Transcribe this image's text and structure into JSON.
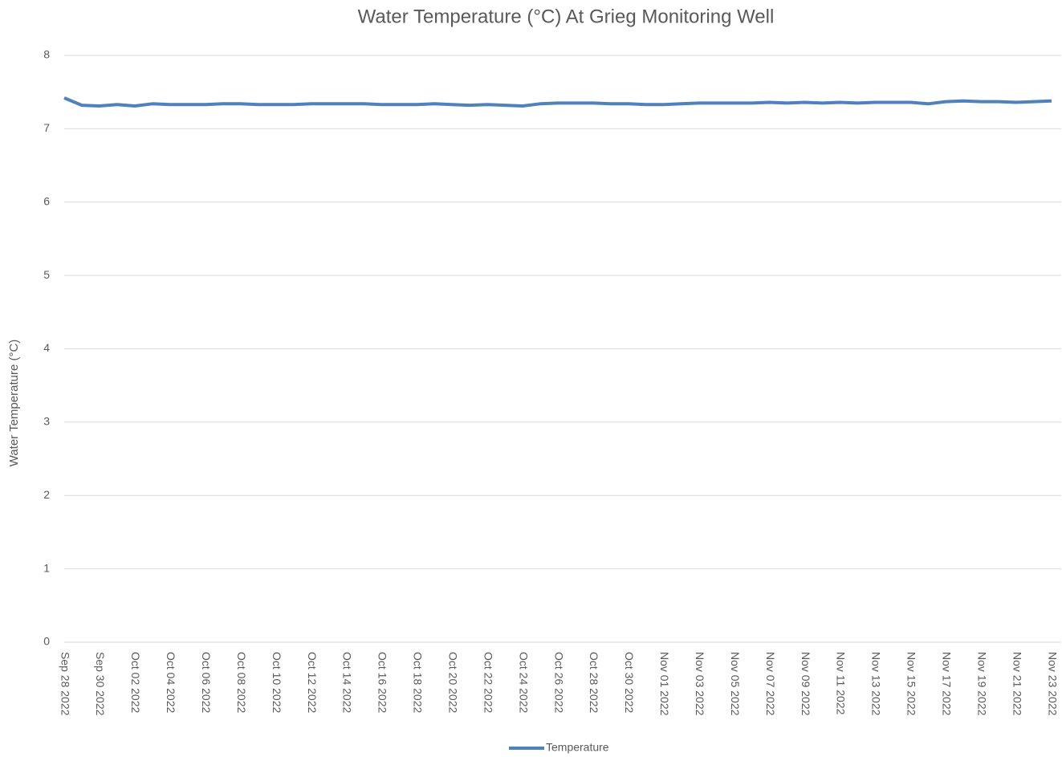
{
  "chart_data": {
    "type": "line",
    "title": "Water Temperature (°C) At Grieg Monitoring Well",
    "y_label": "Water Temperature (°C)",
    "x": [
      "Sep 28 2022",
      "Sep 29 2022",
      "Sep 30 2022",
      "Oct 01 2022",
      "Oct 02 2022",
      "Oct 03 2022",
      "Oct 04 2022",
      "Oct 05 2022",
      "Oct 06 2022",
      "Oct 07 2022",
      "Oct 08 2022",
      "Oct 09 2022",
      "Oct 10 2022",
      "Oct 11 2022",
      "Oct 12 2022",
      "Oct 13 2022",
      "Oct 14 2022",
      "Oct 15 2022",
      "Oct 16 2022",
      "Oct 17 2022",
      "Oct 18 2022",
      "Oct 19 2022",
      "Oct 20 2022",
      "Oct 21 2022",
      "Oct 22 2022",
      "Oct 23 2022",
      "Oct 24 2022",
      "Oct 25 2022",
      "Oct 26 2022",
      "Oct 27 2022",
      "Oct 28 2022",
      "Oct 29 2022",
      "Oct 30 2022",
      "Oct 31 2022",
      "Nov 01 2022",
      "Nov 02 2022",
      "Nov 03 2022",
      "Nov 04 2022",
      "Nov 05 2022",
      "Nov 06 2022",
      "Nov 07 2022",
      "Nov 08 2022",
      "Nov 09 2022",
      "Nov 10 2022",
      "Nov 11 2022",
      "Nov 12 2022",
      "Nov 13 2022",
      "Nov 14 2022",
      "Nov 15 2022",
      "Nov 16 2022",
      "Nov 17 2022",
      "Nov 18 2022",
      "Nov 19 2022",
      "Nov 20 2022",
      "Nov 21 2022",
      "Nov 22 2022",
      "Nov 23 2022"
    ],
    "series": [
      {
        "name": "Temperature",
        "color": "#4f81bd",
        "values": [
          7.42,
          7.32,
          7.31,
          7.33,
          7.31,
          7.34,
          7.33,
          7.33,
          7.33,
          7.34,
          7.34,
          7.33,
          7.33,
          7.33,
          7.34,
          7.34,
          7.34,
          7.34,
          7.33,
          7.33,
          7.33,
          7.34,
          7.33,
          7.32,
          7.33,
          7.32,
          7.31,
          7.34,
          7.35,
          7.35,
          7.35,
          7.34,
          7.34,
          7.33,
          7.33,
          7.34,
          7.35,
          7.35,
          7.35,
          7.35,
          7.36,
          7.35,
          7.36,
          7.35,
          7.36,
          7.35,
          7.36,
          7.36,
          7.36,
          7.34,
          7.37,
          7.38,
          7.37,
          7.37,
          7.36,
          7.37,
          7.38
        ]
      }
    ],
    "ylim": [
      0,
      8
    ],
    "yticks": [
      0,
      1,
      2,
      3,
      4,
      5,
      6,
      7,
      8
    ],
    "xticks": [
      "Sep 28 2022",
      "Sep 30 2022",
      "Oct 02 2022",
      "Oct 04 2022",
      "Oct 06 2022",
      "Oct 08 2022",
      "Oct 10 2022",
      "Oct 12 2022",
      "Oct 14 2022",
      "Oct 16 2022",
      "Oct 18 2022",
      "Oct 20 2022",
      "Oct 22 2022",
      "Oct 24 2022",
      "Oct 26 2022",
      "Oct 28 2022",
      "Oct 30 2022",
      "Nov 01 2022",
      "Nov 03 2022",
      "Nov 05 2022",
      "Nov 07 2022",
      "Nov 09 2022",
      "Nov 11 2022",
      "Nov 13 2022",
      "Nov 15 2022",
      "Nov 17 2022",
      "Nov 19 2022",
      "Nov 21 2022",
      "Nov 23 2022"
    ],
    "grid": true,
    "legend": "bottom"
  }
}
